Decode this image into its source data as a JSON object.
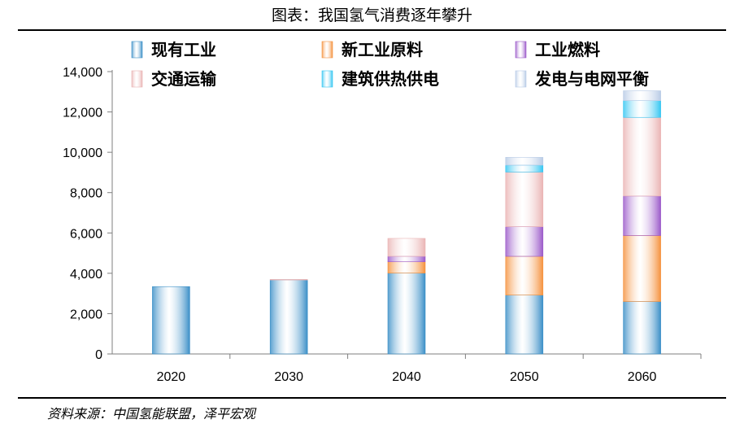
{
  "title": "图表：我国氢气消费逐年攀升",
  "source": "资料来源：中国氢能联盟，泽平宏观",
  "chart_data": {
    "type": "bar",
    "stacked": true,
    "title": "图表：我国氢气消费逐年攀升",
    "categories": [
      "2020",
      "2030",
      "2040",
      "2050",
      "2060"
    ],
    "ylim": [
      0,
      14000
    ],
    "yticks": [
      0,
      2000,
      4000,
      6000,
      8000,
      10000,
      12000,
      14000
    ],
    "ytick_labels": [
      "0",
      "2,000",
      "4,000",
      "6,000",
      "8,000",
      "10,000",
      "12,000",
      "14,000"
    ],
    "legend_position": "top",
    "series": [
      {
        "name": "现有工业",
        "color": "#3b8fc7",
        "values": [
          3340,
          3670,
          4010,
          2920,
          2600
        ]
      },
      {
        "name": "新工业原料",
        "color": "#f5923e",
        "values": [
          0,
          0,
          560,
          1920,
          3270
        ]
      },
      {
        "name": "工业燃料",
        "color": "#9b59c9",
        "values": [
          0,
          0,
          270,
          1470,
          1960
        ]
      },
      {
        "name": "交通运输",
        "color": "#eab4b4",
        "values": [
          0,
          30,
          890,
          2710,
          3900
        ]
      },
      {
        "name": "建筑供热供电",
        "color": "#35c6f2",
        "values": [
          0,
          0,
          0,
          340,
          830
        ]
      },
      {
        "name": "发电与电网平衡",
        "color": "#b8cbe6",
        "values": [
          0,
          0,
          0,
          390,
          490
        ]
      }
    ]
  }
}
